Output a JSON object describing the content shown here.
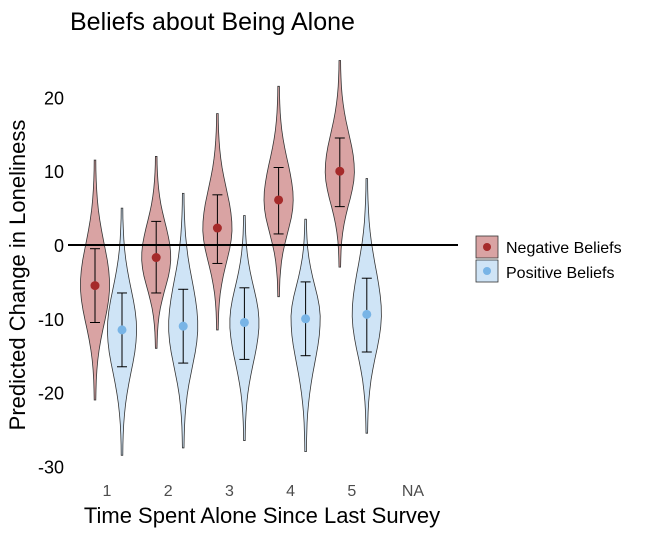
{
  "chart_data": {
    "type": "violin",
    "title": "Beliefs about Being Alone",
    "xlabel": "Time Spent Alone Since Last Survey",
    "ylabel": "Predicted Change in Loneliness",
    "categories": [
      "1",
      "2",
      "3",
      "4",
      "5",
      "NA"
    ],
    "ylim": [
      -30,
      25
    ],
    "yticks": [
      -30,
      -20,
      -10,
      0,
      10,
      20
    ],
    "reference_line": 0,
    "grid": false,
    "legend_position": "right",
    "series": [
      {
        "name": "Negative Beliefs",
        "fill": "#d9a3a3",
        "point_color": "#a52a2a",
        "line_color": "#333333",
        "points": [
          {
            "x": "1",
            "mean": -5.5,
            "ci": [
              -10.5,
              -0.5
            ],
            "range": [
              -21,
              11.5
            ]
          },
          {
            "x": "2",
            "mean": -1.7,
            "ci": [
              -6.5,
              3.2
            ],
            "range": [
              -14,
              12
            ]
          },
          {
            "x": "3",
            "mean": 2.3,
            "ci": [
              -2.5,
              6.8
            ],
            "range": [
              -11.5,
              17.8
            ]
          },
          {
            "x": "4",
            "mean": 6.1,
            "ci": [
              1.5,
              10.5
            ],
            "range": [
              -7,
              21.5
            ]
          },
          {
            "x": "5",
            "mean": 10.0,
            "ci": [
              5.2,
              14.5
            ],
            "range": [
              -3,
              25
            ]
          }
        ]
      },
      {
        "name": "Positive Beliefs",
        "fill": "#cfe4f6",
        "point_color": "#78b4e6",
        "line_color": "#333333",
        "points": [
          {
            "x": "1",
            "mean": -11.5,
            "ci": [
              -16.5,
              -6.5
            ],
            "range": [
              -28.5,
              5
            ]
          },
          {
            "x": "2",
            "mean": -11.0,
            "ci": [
              -16,
              -6
            ],
            "range": [
              -27.5,
              7
            ]
          },
          {
            "x": "3",
            "mean": -10.5,
            "ci": [
              -15.5,
              -5.8
            ],
            "range": [
              -26.5,
              4
            ]
          },
          {
            "x": "4",
            "mean": -10.0,
            "ci": [
              -15,
              -5
            ],
            "range": [
              -28,
              3.5
            ]
          },
          {
            "x": "5",
            "mean": -9.4,
            "ci": [
              -14.5,
              -4.5
            ],
            "range": [
              -25.5,
              9
            ]
          }
        ]
      }
    ]
  }
}
